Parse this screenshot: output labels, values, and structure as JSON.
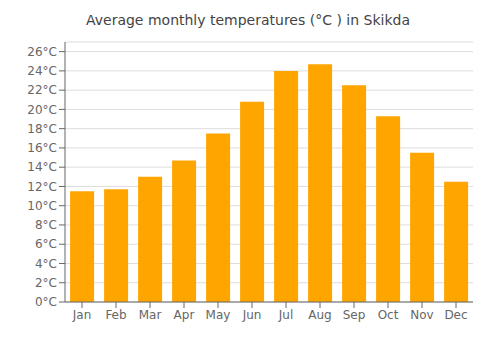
{
  "chart_data": {
    "type": "bar",
    "title": "Average monthly temperatures (°C ) in Skikda",
    "categories": [
      "Jan",
      "Feb",
      "Mar",
      "Apr",
      "May",
      "Jun",
      "Jul",
      "Aug",
      "Sep",
      "Oct",
      "Nov",
      "Dec"
    ],
    "values": [
      11.5,
      11.7,
      13.0,
      14.7,
      17.5,
      20.8,
      24.0,
      24.7,
      22.5,
      19.3,
      15.5,
      12.5
    ],
    "color": "#FFA500",
    "ylim": [
      0,
      27
    ],
    "yticks": [
      {
        "value": 0,
        "label": "0°C"
      },
      {
        "value": 2,
        "label": "2°C"
      },
      {
        "value": 4,
        "label": "4°C"
      },
      {
        "value": 6,
        "label": "6°C"
      },
      {
        "value": 8,
        "label": "8°C"
      },
      {
        "value": 10,
        "label": "10°C"
      },
      {
        "value": 12,
        "label": "12°C"
      },
      {
        "value": 14,
        "label": "14°C"
      },
      {
        "value": 16,
        "label": "16°C"
      },
      {
        "value": 18,
        "label": "18°C"
      },
      {
        "value": 20,
        "label": "20°C"
      },
      {
        "value": 22,
        "label": "22°C"
      },
      {
        "value": 24,
        "label": "24°C"
      },
      {
        "value": 26,
        "label": "26°C"
      }
    ],
    "grid": true
  }
}
